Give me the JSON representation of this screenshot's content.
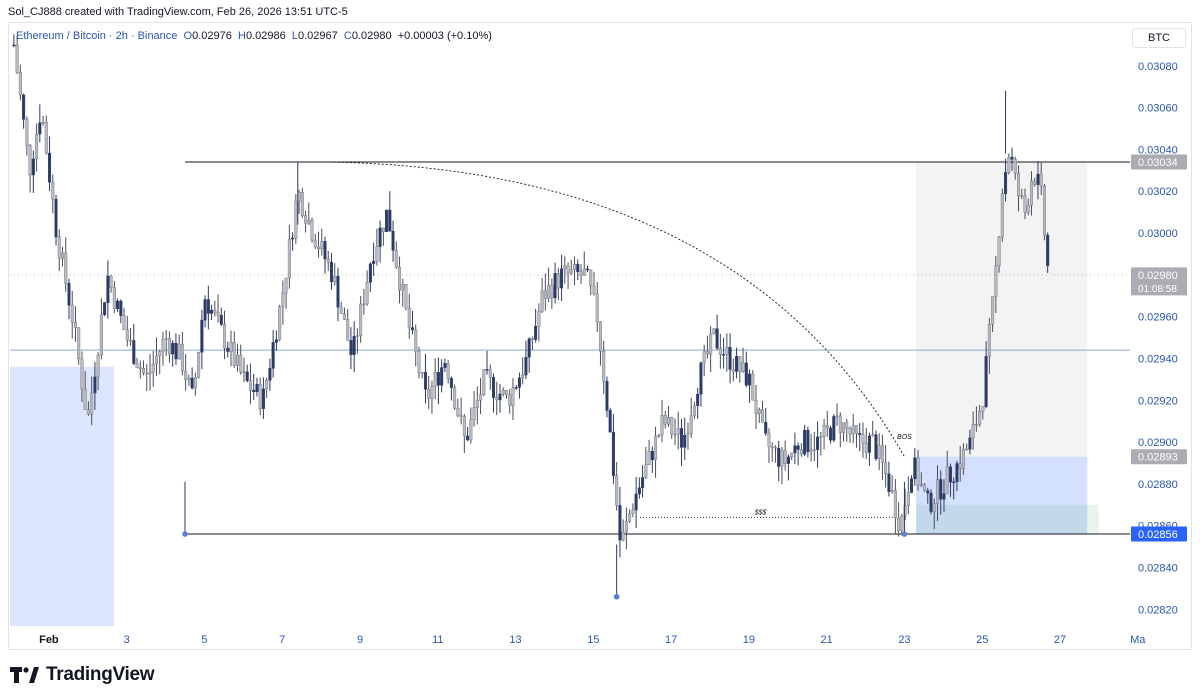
{
  "credit": "Sol_CJ888 created with TradingView.com, Feb 26, 2026 13:51 UTC-5",
  "legend": {
    "symbol": "Ethereum / Bitcoin · 2h · Binance",
    "o_label": "O",
    "o": "0.02976",
    "h_label": "H",
    "h": "0.02986",
    "l_label": "L",
    "l": "0.02967",
    "c_label": "C",
    "c": "0.02980",
    "change": "+0.00003 (+0.10%)"
  },
  "unit_button": "BTC",
  "brand": "TradingView",
  "colors": {
    "candle": "#b8bbc2",
    "candle_dark": "#2b3a67",
    "accent": "#2962ff",
    "axis_label": "#2a55b8"
  },
  "chart_data": {
    "type": "candlestick",
    "ylim": [
      0.02812,
      0.031
    ],
    "y_ticks": [
      "0.03080",
      "0.03060",
      "0.03040",
      "0.03020",
      "0.03000",
      "0.02960",
      "0.02940",
      "0.02920",
      "0.02900",
      "0.02880",
      "0.02860",
      "0.02840",
      "0.02820"
    ],
    "x_range": [
      0.0,
      28.8
    ],
    "x_ticks": [
      {
        "x": 1,
        "label": "Feb"
      },
      {
        "x": 3,
        "label": "3"
      },
      {
        "x": 5,
        "label": "5"
      },
      {
        "x": 7,
        "label": "7"
      },
      {
        "x": 9,
        "label": "9"
      },
      {
        "x": 11,
        "label": "11"
      },
      {
        "x": 13,
        "label": "13"
      },
      {
        "x": 15,
        "label": "15"
      },
      {
        "x": 17,
        "label": "17"
      },
      {
        "x": 19,
        "label": "19"
      },
      {
        "x": 21,
        "label": "21"
      },
      {
        "x": 23,
        "label": "23"
      },
      {
        "x": 25,
        "label": "25"
      },
      {
        "x": 27,
        "label": "27"
      },
      {
        "x": 29,
        "label": "Ma"
      }
    ],
    "price_key_points": [
      [
        0.1,
        0.0309
      ],
      [
        0.5,
        0.0303
      ],
      [
        0.8,
        0.0306
      ],
      [
        1.2,
        0.03
      ],
      [
        1.6,
        0.0296
      ],
      [
        2.0,
        0.0291
      ],
      [
        2.5,
        0.0298
      ],
      [
        3.0,
        0.0295
      ],
      [
        3.5,
        0.0293
      ],
      [
        4.0,
        0.0295
      ],
      [
        4.4,
        0.0294
      ],
      [
        4.7,
        0.0292
      ],
      [
        5.0,
        0.0297
      ],
      [
        5.5,
        0.0295
      ],
      [
        6.0,
        0.0293
      ],
      [
        6.5,
        0.0292
      ],
      [
        7.0,
        0.0297
      ],
      [
        7.4,
        0.0302
      ],
      [
        7.8,
        0.03
      ],
      [
        8.3,
        0.0298
      ],
      [
        8.8,
        0.0294
      ],
      [
        9.3,
        0.0299
      ],
      [
        9.7,
        0.0301
      ],
      [
        10.2,
        0.0296
      ],
      [
        10.7,
        0.0292
      ],
      [
        11.2,
        0.0294
      ],
      [
        11.7,
        0.029
      ],
      [
        12.2,
        0.0293
      ],
      [
        12.8,
        0.0292
      ],
      [
        13.3,
        0.0294
      ],
      [
        13.7,
        0.0297
      ],
      [
        14.2,
        0.0298
      ],
      [
        14.8,
        0.0298
      ],
      [
        15.1,
        0.0296
      ],
      [
        15.4,
        0.0291
      ],
      [
        15.7,
        0.0285
      ],
      [
        16.0,
        0.0287
      ],
      [
        16.4,
        0.0289
      ],
      [
        16.8,
        0.0291
      ],
      [
        17.3,
        0.029
      ],
      [
        17.7,
        0.0293
      ],
      [
        18.1,
        0.0295
      ],
      [
        18.5,
        0.0294
      ],
      [
        19.0,
        0.0293
      ],
      [
        19.4,
        0.029
      ],
      [
        19.9,
        0.0289
      ],
      [
        20.3,
        0.029
      ],
      [
        20.8,
        0.029
      ],
      [
        21.3,
        0.0291
      ],
      [
        21.8,
        0.029
      ],
      [
        22.2,
        0.029
      ],
      [
        22.6,
        0.0288
      ],
      [
        22.9,
        0.0286
      ],
      [
        23.2,
        0.0289
      ],
      [
        23.6,
        0.0287
      ],
      [
        24.0,
        0.0288
      ],
      [
        24.4,
        0.0289
      ],
      [
        24.7,
        0.029
      ],
      [
        25.0,
        0.0292
      ],
      [
        25.3,
        0.0297
      ],
      [
        25.5,
        0.0302
      ],
      [
        25.7,
        0.0304
      ],
      [
        25.9,
        0.0302
      ],
      [
        26.1,
        0.0301
      ],
      [
        26.3,
        0.0303
      ],
      [
        26.5,
        0.0302
      ],
      [
        26.7,
        0.0298
      ]
    ],
    "extremes": [
      {
        "x": 4.5,
        "low": 0.02856
      },
      {
        "x": 15.6,
        "low": 0.02826
      },
      {
        "x": 23.0,
        "low": 0.02856
      },
      {
        "x": 7.4,
        "high": 0.03034
      },
      {
        "x": 25.6,
        "high": 0.03068
      }
    ],
    "horizontal_lines": [
      {
        "name": "range-high",
        "y": 0.03034,
        "x_from": 4.5,
        "x_to": 28.8
      },
      {
        "name": "range-low",
        "y": 0.02856,
        "x_from": 4.5,
        "x_to": 28.8
      },
      {
        "name": "mid-line",
        "y": 0.02944,
        "x_from": 0.0,
        "x_to": 28.8
      },
      {
        "name": "last-price",
        "y": 0.0298,
        "x_from": 0.0,
        "x_to": 28.8
      },
      {
        "name": "liquidity",
        "y": 0.02864,
        "x_from": 16.2,
        "x_to": 22.8
      }
    ],
    "zones": [
      {
        "name": "left-demand",
        "x_from": 0.0,
        "x_to": 2.68,
        "y_from": 0.02812,
        "y_to": 0.02936
      },
      {
        "name": "position-grey",
        "x_from": 23.3,
        "x_to": 27.7,
        "y_from": 0.02893,
        "y_to": 0.03034
      },
      {
        "name": "position-blue",
        "x_from": 23.3,
        "x_to": 27.7,
        "y_from": 0.02856,
        "y_to": 0.02893
      },
      {
        "name": "position-green",
        "x_from": 23.3,
        "x_to": 28.0,
        "y_from": 0.02856,
        "y_to": 0.0287
      }
    ],
    "curve": {
      "from": [
        7.4,
        0.03034
      ],
      "to": [
        23.0,
        0.02893
      ]
    },
    "annotations": [
      {
        "x": 23.0,
        "y": 0.029,
        "text": "BOS"
      },
      {
        "x": 19.3,
        "y": 0.02864,
        "text": "$$$"
      }
    ],
    "price_labels": [
      {
        "value": "0.03034",
        "style": "grey"
      },
      {
        "value": "0.02980",
        "countdown": "01:08:58",
        "style": "grey"
      },
      {
        "value": "0.02893",
        "style": "grey"
      },
      {
        "value": "0.02856",
        "style": "blue"
      }
    ]
  }
}
